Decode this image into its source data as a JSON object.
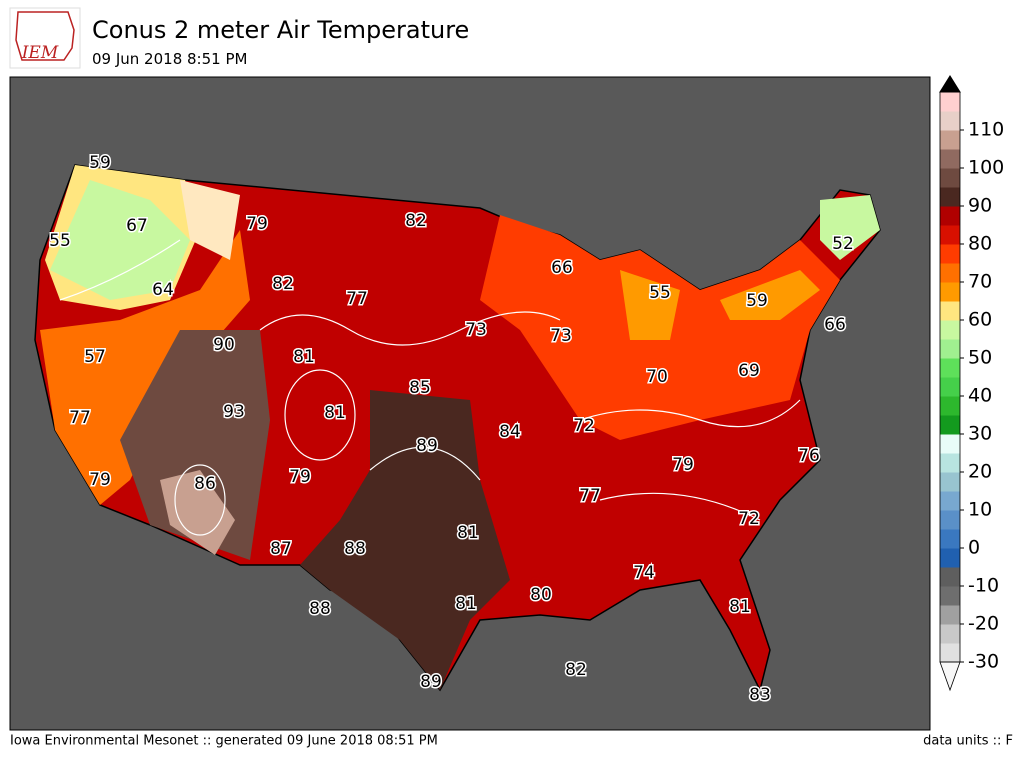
{
  "header": {
    "logo": "IEM",
    "title": "Conus 2 meter Air Temperature",
    "subtitle": "09 Jun 2018 8:51 PM"
  },
  "map": {
    "station_values": [
      59,
      67,
      55,
      64,
      79,
      82,
      82,
      77,
      57,
      90,
      81,
      73,
      73,
      66,
      55,
      59,
      52,
      66,
      85,
      93,
      81,
      89,
      84,
      72,
      70,
      69,
      77,
      79,
      86,
      79,
      76,
      79,
      77,
      72,
      81,
      87,
      88,
      74,
      81,
      80,
      81,
      88,
      82,
      89,
      83
    ]
  },
  "colorbar": {
    "lim": [
      -30,
      120
    ],
    "ticks": [
      -30,
      -20,
      -10,
      0,
      10,
      20,
      30,
      40,
      50,
      60,
      70,
      80,
      90,
      100,
      110
    ],
    "colors": [
      "#f7f7f7",
      "#e0e0e0",
      "#c8c8c8",
      "#a0a0a0",
      "#6e6e6e",
      "#5e5e5e",
      "#2060b0",
      "#3a78c0",
      "#5a90c8",
      "#78a8d0",
      "#98c4d0",
      "#b8e4e0",
      "#e8fcf8",
      "#139a1e",
      "#2db82d",
      "#45d04a",
      "#5ee05a",
      "#a0f090",
      "#c8f8a0",
      "#ffe680",
      "#ff9a00",
      "#ff7000",
      "#ff3c00",
      "#d81000",
      "#b00000",
      "#4a2820",
      "#6e4a40",
      "#906a60",
      "#c8a090",
      "#e8d0c8",
      "#ffd0d0",
      "#f8a0a0",
      "#e06060"
    ]
  },
  "footer": {
    "left": "Iowa Environmental Mesonet :: generated 09 June 2018 08:51 PM",
    "right": "data units :: F"
  }
}
